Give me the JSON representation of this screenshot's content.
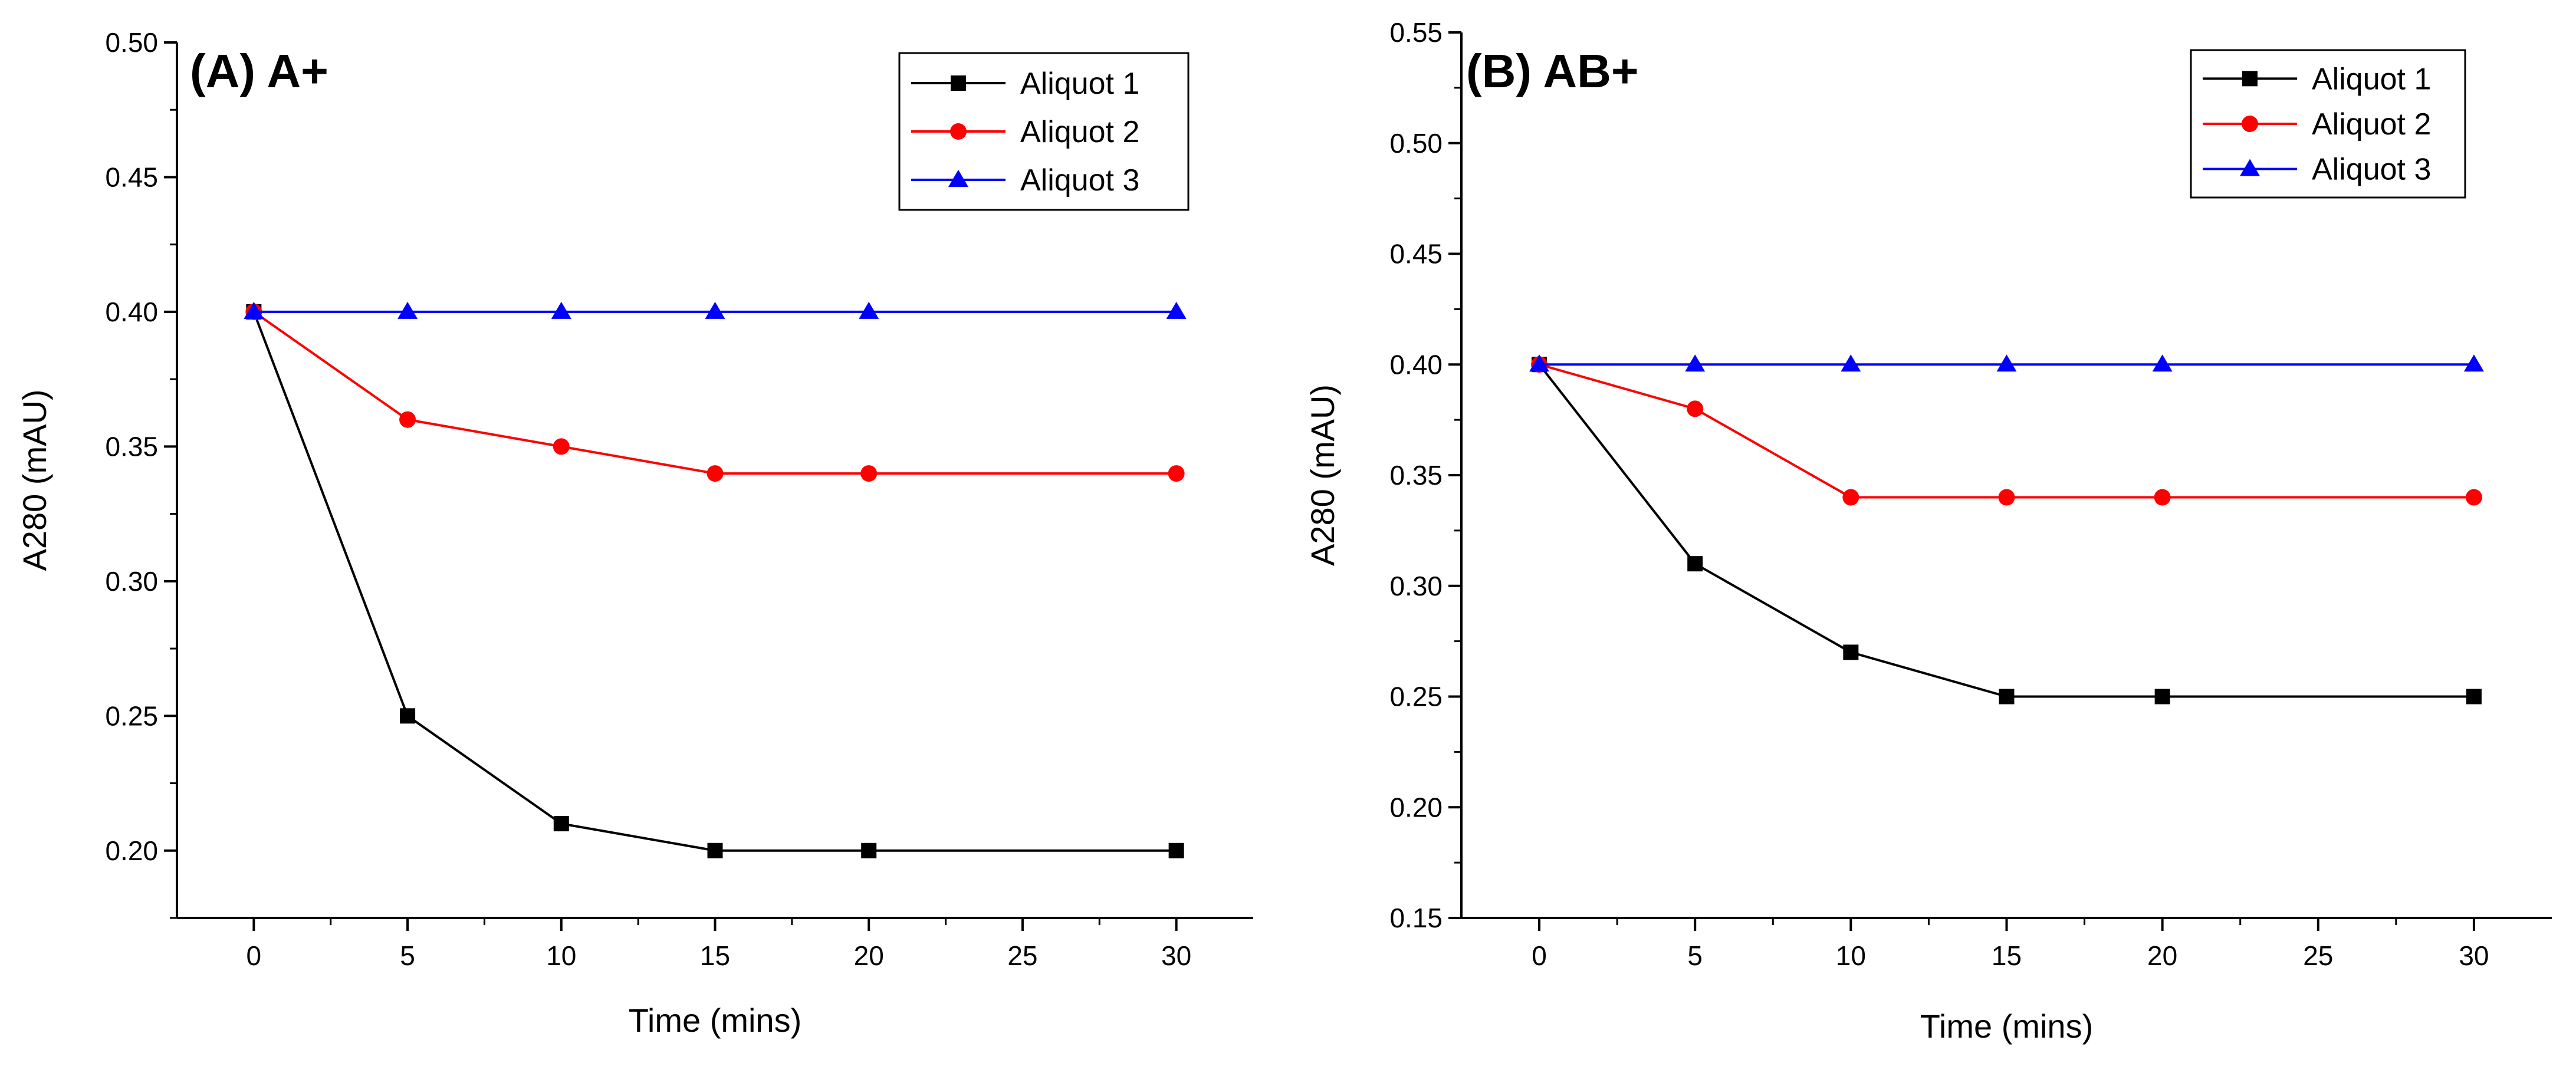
{
  "chart_data": [
    {
      "type": "line",
      "title": "(A) A+",
      "xlabel": "Time (mins)",
      "ylabel": "A280 (mAU)",
      "xlim": [
        -2.5,
        32.5
      ],
      "ylim": [
        0.175,
        0.5
      ],
      "xticks": [
        0,
        5,
        10,
        15,
        20,
        25,
        30
      ],
      "xtick_labels": [
        "0",
        "5",
        "10",
        "15",
        "20",
        "25",
        "30"
      ],
      "yticks": [
        0.2,
        0.25,
        0.3,
        0.35,
        0.4,
        0.45,
        0.5
      ],
      "ytick_labels": [
        "0.20",
        "0.25",
        "0.30",
        "0.35",
        "0.40",
        "0.45",
        "0.50"
      ],
      "legend_position": "top-right",
      "series": [
        {
          "name": "Aliquot 1",
          "color": "#000000",
          "marker": "square",
          "x": [
            0,
            5,
            10,
            15,
            20,
            30
          ],
          "values": [
            0.4,
            0.25,
            0.21,
            0.2,
            0.2,
            0.2
          ]
        },
        {
          "name": "Aliquot 2",
          "color": "#ff0000",
          "marker": "circle",
          "x": [
            0,
            5,
            10,
            15,
            20,
            30
          ],
          "values": [
            0.4,
            0.36,
            0.35,
            0.34,
            0.34,
            0.34
          ]
        },
        {
          "name": "Aliquot 3",
          "color": "#0000ff",
          "marker": "triangle",
          "x": [
            0,
            5,
            10,
            15,
            20,
            30
          ],
          "values": [
            0.4,
            0.4,
            0.4,
            0.4,
            0.4,
            0.4
          ]
        }
      ]
    },
    {
      "type": "line",
      "title": "(B) AB+",
      "xlabel": "Time (mins)",
      "ylabel": "A280 (mAU)",
      "xlim": [
        -2.5,
        32.5
      ],
      "ylim": [
        0.15,
        0.55
      ],
      "xticks": [
        0,
        5,
        10,
        15,
        20,
        25,
        30
      ],
      "xtick_labels": [
        "0",
        "5",
        "10",
        "15",
        "20",
        "25",
        "30"
      ],
      "yticks": [
        0.15,
        0.2,
        0.25,
        0.3,
        0.35,
        0.4,
        0.45,
        0.5,
        0.55
      ],
      "ytick_labels": [
        "0.15",
        "0.20",
        "0.25",
        "0.30",
        "0.35",
        "0.40",
        "0.45",
        "0.50",
        "0.55"
      ],
      "legend_position": "top-right",
      "series": [
        {
          "name": "Aliquot 1",
          "color": "#000000",
          "marker": "square",
          "x": [
            0,
            5,
            10,
            15,
            20,
            30
          ],
          "values": [
            0.4,
            0.31,
            0.27,
            0.25,
            0.25,
            0.25
          ]
        },
        {
          "name": "Aliquot 2",
          "color": "#ff0000",
          "marker": "circle",
          "x": [
            0,
            5,
            10,
            15,
            20,
            30
          ],
          "values": [
            0.4,
            0.38,
            0.34,
            0.34,
            0.34,
            0.34
          ]
        },
        {
          "name": "Aliquot 3",
          "color": "#0000ff",
          "marker": "triangle",
          "x": [
            0,
            5,
            10,
            15,
            20,
            30
          ],
          "values": [
            0.4,
            0.4,
            0.4,
            0.4,
            0.4,
            0.4
          ]
        }
      ]
    }
  ]
}
